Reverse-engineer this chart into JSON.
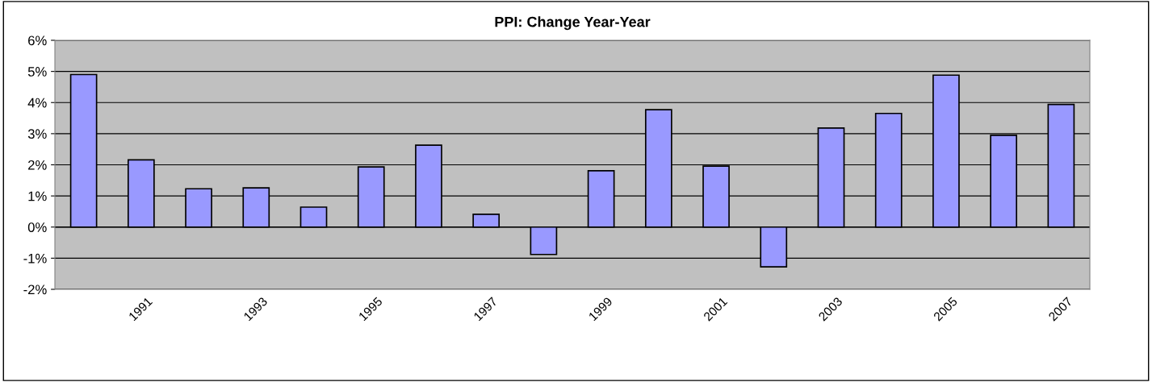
{
  "chart_data": {
    "type": "bar",
    "title": "PPI: Change Year-Year",
    "categories": [
      null,
      "1991",
      null,
      "1993",
      null,
      "1995",
      null,
      "1997",
      null,
      "1999",
      null,
      "2001",
      null,
      "2003",
      null,
      "2005",
      null,
      "2007"
    ],
    "values": [
      4.9,
      2.16,
      1.23,
      1.26,
      0.64,
      1.93,
      2.63,
      0.41,
      -0.88,
      1.81,
      3.77,
      1.96,
      -1.28,
      3.18,
      3.65,
      4.88,
      2.95,
      3.94
    ],
    "color": "#9999ff",
    "ylim": [
      -2,
      6
    ],
    "yticks": [
      {
        "value": -2,
        "label": "-2%"
      },
      {
        "value": -1,
        "label": "-1%"
      },
      {
        "value": 0,
        "label": "0%"
      },
      {
        "value": 1,
        "label": "1%"
      },
      {
        "value": 2,
        "label": "2%"
      },
      {
        "value": 3,
        "label": "3%"
      },
      {
        "value": 4,
        "label": "4%"
      },
      {
        "value": 5,
        "label": "5%"
      },
      {
        "value": 6,
        "label": "6%"
      }
    ],
    "grid": "y"
  }
}
